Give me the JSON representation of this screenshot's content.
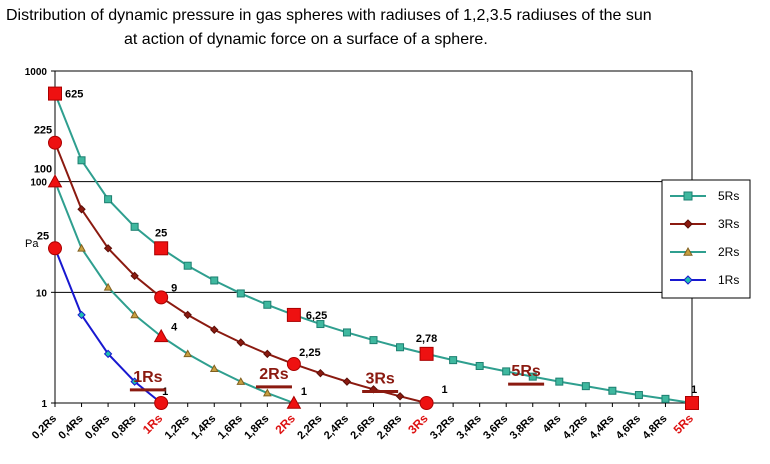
{
  "title_line1": "Distribution of dynamic pressure in gas spheres with radiuses of 1,2,3.5 radiuses of the sun",
  "title_line2": "at action of dynamic force on a surface of a sphere.",
  "chart_data": {
    "type": "line",
    "title": "Distribution of dynamic pressure in gas spheres with radiuses of 1,2,3.5 radiuses of the sun at action of dynamic force on a surface of a sphere.",
    "xlabel": "",
    "ylabel": "Pa",
    "y_scale": "log",
    "ylim": [
      1,
      1000
    ],
    "y_ticks": [
      "1",
      "10",
      "100",
      "1000"
    ],
    "grid": "horizontal",
    "legend_position": "right",
    "x_ticks": [
      "0,2Rs",
      "0,4Rs",
      "0,6Rs",
      "0,8Rs",
      "1Rs",
      "1,2Rs",
      "1,4Rs",
      "1,6Rs",
      "1,8Rs",
      "2Rs",
      "2,2Rs",
      "2,4Rs",
      "2,6Rs",
      "2,8Rs",
      "3Rs",
      "3,2Rs",
      "3,4Rs",
      "3,6Rs",
      "3,8Rs",
      "4Rs",
      "4,2Rs",
      "4,4Rs",
      "4,6Rs",
      "4,8Rs",
      "5Rs"
    ],
    "x_ticks_highlight": [
      "1Rs",
      "2Rs",
      "3Rs",
      "5Rs"
    ],
    "highlight_color": "#dd1111",
    "series": [
      {
        "name": "5Rs",
        "color": "#2f9f8f",
        "marker": "square",
        "x": [
          0.2,
          0.4,
          0.6,
          0.8,
          1.0,
          1.2,
          1.4,
          1.6,
          1.8,
          2.0,
          2.2,
          2.4,
          2.6,
          2.8,
          3.0,
          3.2,
          3.4,
          3.6,
          3.8,
          4.0,
          4.2,
          4.4,
          4.6,
          4.8,
          5.0
        ],
        "y": [
          625,
          156,
          69.4,
          39.1,
          25,
          17.4,
          12.8,
          9.77,
          7.72,
          6.25,
          5.17,
          4.34,
          3.7,
          3.19,
          2.78,
          2.44,
          2.16,
          1.93,
          1.73,
          1.56,
          1.42,
          1.29,
          1.18,
          1.09,
          1
        ]
      },
      {
        "name": "3Rs",
        "color": "#8b1a10",
        "marker": "diamond",
        "x": [
          0.2,
          0.4,
          0.6,
          0.8,
          1.0,
          1.2,
          1.4,
          1.6,
          1.8,
          2.0,
          2.2,
          2.4,
          2.6,
          2.8,
          3.0
        ],
        "y": [
          225,
          56.3,
          25,
          14.1,
          9,
          6.25,
          4.59,
          3.52,
          2.78,
          2.25,
          1.86,
          1.56,
          1.33,
          1.15,
          1
        ]
      },
      {
        "name": "2Rs",
        "color": "#2f9f8f",
        "marker": "triangle",
        "x": [
          0.2,
          0.4,
          0.6,
          0.8,
          1.0,
          1.2,
          1.4,
          1.6,
          1.8,
          2.0
        ],
        "y": [
          100,
          25,
          11.1,
          6.25,
          4,
          2.78,
          2.04,
          1.56,
          1.23,
          1
        ]
      },
      {
        "name": "1Rs",
        "color": "#1818d0",
        "marker": "diamond",
        "x": [
          0.2,
          0.4,
          0.6,
          0.8,
          1.0
        ],
        "y": [
          25,
          6.25,
          2.78,
          1.56,
          1
        ]
      }
    ],
    "annotations": [
      {
        "text": "625",
        "x": 0.2,
        "y": 625
      },
      {
        "text": "225",
        "x": 0.2,
        "y": 225
      },
      {
        "text": "100",
        "x": 0.2,
        "y": 100
      },
      {
        "text": "25",
        "x": 0.2,
        "y": 25
      },
      {
        "text": "25",
        "x": 1.0,
        "y": 25
      },
      {
        "text": "9",
        "x": 1.0,
        "y": 9
      },
      {
        "text": "4",
        "x": 1.0,
        "y": 4
      },
      {
        "text": "1",
        "x": 1.0,
        "y": 1
      },
      {
        "text": "6,25",
        "x": 2.0,
        "y": 6.25
      },
      {
        "text": "2,25",
        "x": 2.0,
        "y": 2.25
      },
      {
        "text": "1",
        "x": 2.0,
        "y": 1
      },
      {
        "text": "2,78",
        "x": 3.0,
        "y": 2.78
      },
      {
        "text": "1",
        "x": 3.0,
        "y": 1
      },
      {
        "text": "1",
        "x": 5.0,
        "y": 1
      }
    ],
    "highlight_points": [
      {
        "x": 0.2,
        "y": 625,
        "shape": "square"
      },
      {
        "x": 0.2,
        "y": 225,
        "shape": "circle"
      },
      {
        "x": 0.2,
        "y": 100,
        "shape": "triangle"
      },
      {
        "x": 0.2,
        "y": 25,
        "shape": "circle"
      },
      {
        "x": 1.0,
        "y": 25,
        "shape": "square"
      },
      {
        "x": 1.0,
        "y": 9,
        "shape": "circle"
      },
      {
        "x": 1.0,
        "y": 4,
        "shape": "triangle"
      },
      {
        "x": 1.0,
        "y": 1,
        "shape": "circle"
      },
      {
        "x": 2.0,
        "y": 6.25,
        "shape": "square"
      },
      {
        "x": 2.0,
        "y": 2.25,
        "shape": "circle"
      },
      {
        "x": 2.0,
        "y": 1,
        "shape": "triangle"
      },
      {
        "x": 3.0,
        "y": 2.78,
        "shape": "square"
      },
      {
        "x": 3.0,
        "y": 1,
        "shape": "circle"
      },
      {
        "x": 5.0,
        "y": 1,
        "shape": "square"
      }
    ],
    "curve_labels": [
      {
        "text": "1Rs",
        "color": "#8b1a10",
        "x": 0.9,
        "y": 1.55
      },
      {
        "text": "2Rs",
        "color": "#8b1a10",
        "x": 1.85,
        "y": 1.65
      },
      {
        "text": "3Rs",
        "color": "#8b1a10",
        "x": 2.65,
        "y": 1.5
      },
      {
        "text": "5Rs",
        "color": "#8b1a10",
        "x": 3.75,
        "y": 1.75
      }
    ]
  }
}
